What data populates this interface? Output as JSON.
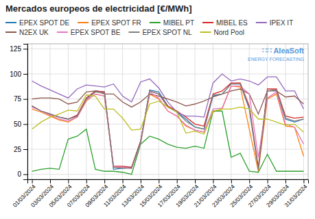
{
  "chart_data": {
    "type": "line",
    "title": "Mercados europeos de electricidad [€/MWh]",
    "annotations": [
      "∷∷ AleaSoft",
      "ENERGY FORECASTING"
    ],
    "categories": [
      "01/03/2024",
      null,
      "03/03/2024",
      null,
      "05/03/2024",
      null,
      "07/03/2024",
      null,
      "09/03/2024",
      null,
      "11/03/2024",
      null,
      "13/03/2024",
      null,
      "15/03/2024",
      null,
      "17/03/2024",
      null,
      "19/03/2024",
      null,
      "21/03/2024",
      null,
      "23/03/2024",
      null,
      "25/03/2024",
      null,
      "27/03/2024",
      null,
      "29/03/2024",
      null,
      "31/03/2024"
    ],
    "series": [
      {
        "name": "EPEX SPOT DE",
        "values": [
          68,
          63,
          60,
          57,
          55,
          58,
          75,
          83,
          82,
          5,
          6,
          7,
          33,
          84,
          82,
          68,
          62,
          55,
          47,
          45,
          78,
          80,
          90,
          90,
          65,
          5,
          83,
          84,
          55,
          52,
          55
        ]
      },
      {
        "name": "EPEX SPOT FR",
        "values": [
          65,
          62,
          58,
          54,
          52,
          57,
          73,
          80,
          78,
          7,
          7,
          6,
          31,
          80,
          75,
          63,
          58,
          48,
          44,
          42,
          62,
          65,
          88,
          87,
          45,
          3,
          75,
          80,
          48,
          47,
          18
        ]
      },
      {
        "name": "MIBEL PT",
        "values": [
          3,
          5,
          6,
          5,
          35,
          38,
          45,
          5,
          3,
          3,
          2,
          0,
          30,
          38,
          35,
          30,
          27,
          26,
          28,
          26,
          63,
          63,
          17,
          21,
          3,
          2,
          20,
          3,
          3,
          3,
          3
        ]
      },
      {
        "name": "MIBEL ES",
        "values": [
          68,
          63,
          60,
          57,
          55,
          59,
          76,
          83,
          82,
          8,
          8,
          7,
          33,
          83,
          80,
          68,
          63,
          57,
          50,
          48,
          80,
          83,
          91,
          91,
          68,
          7,
          85,
          85,
          58,
          56,
          57
        ]
      },
      {
        "name": "IPEX IT",
        "values": [
          93,
          88,
          84,
          80,
          76,
          85,
          89,
          88,
          87,
          90,
          78,
          72,
          92,
          95,
          86,
          72,
          62,
          58,
          58,
          57,
          91,
          100,
          93,
          95,
          93,
          89,
          97,
          97,
          83,
          83,
          65
        ]
      },
      {
        "name": "N2EX UK",
        "values": [
          75,
          76,
          76,
          75,
          70,
          72,
          82,
          83,
          80,
          80,
          72,
          67,
          72,
          80,
          78,
          75,
          72,
          68,
          70,
          73,
          77,
          80,
          83,
          85,
          80,
          60,
          83,
          83,
          77,
          78,
          70
        ]
      },
      {
        "name": "EPEX SPOT BE",
        "values": [
          67,
          63,
          59,
          55,
          53,
          57,
          74,
          80,
          78,
          8,
          7,
          6,
          31,
          82,
          76,
          63,
          58,
          49,
          44,
          42,
          65,
          66,
          88,
          88,
          80,
          17,
          76,
          82,
          50,
          47,
          30
        ]
      },
      {
        "name": "EPEX SPOT NL",
        "values": [
          68,
          63,
          60,
          57,
          55,
          58,
          75,
          82,
          81,
          7,
          6,
          6,
          32,
          83,
          80,
          67,
          62,
          53,
          47,
          45,
          79,
          80,
          90,
          90,
          66,
          5,
          83,
          84,
          56,
          53,
          55
        ]
      },
      {
        "name": "Nord Pool",
        "values": [
          45,
          52,
          57,
          60,
          64,
          63,
          79,
          78,
          65,
          65,
          56,
          44,
          45,
          70,
          73,
          67,
          62,
          41,
          43,
          40,
          63,
          65,
          65,
          67,
          65,
          55,
          55,
          52,
          49,
          50,
          42
        ]
      }
    ],
    "ylim": [
      -5,
      130
    ],
    "yticks": [
      0,
      25,
      50,
      75,
      100,
      125
    ],
    "grid": true,
    "legend": "top"
  }
}
